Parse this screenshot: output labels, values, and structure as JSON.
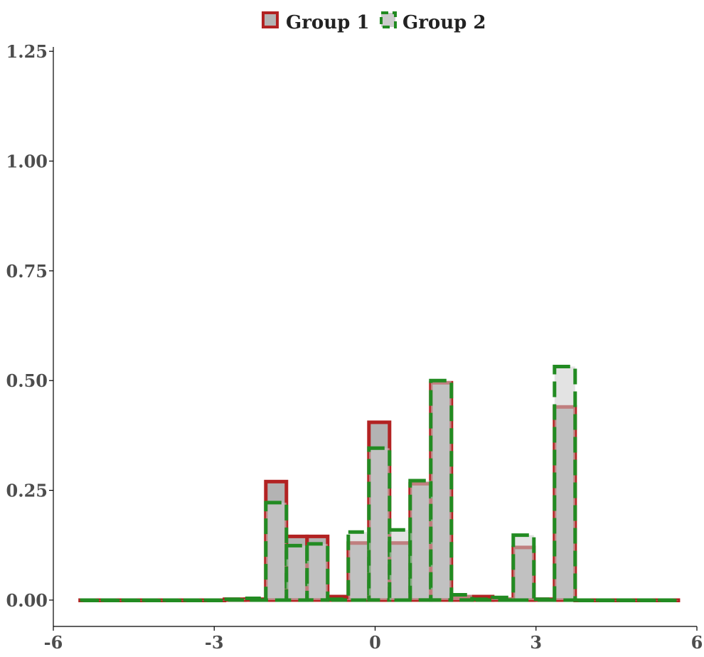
{
  "chart_data": {
    "type": "bar",
    "title": "",
    "xlabel": "",
    "ylabel": "",
    "xlim": [
      -6,
      6
    ],
    "ylim": [
      -0.06,
      1.26
    ],
    "grid": false,
    "legend_position": "top",
    "x_ticks": [
      {
        "value": -6,
        "label": "-6"
      },
      {
        "value": -3,
        "label": "-3"
      },
      {
        "value": 0,
        "label": "0"
      },
      {
        "value": 3,
        "label": "3"
      },
      {
        "value": 6,
        "label": "6"
      }
    ],
    "y_ticks": [
      {
        "value": 0,
        "label": "0.00"
      },
      {
        "value": 0.25,
        "label": "0.25"
      },
      {
        "value": 0.5,
        "label": "0.50"
      },
      {
        "value": 0.75,
        "label": "0.75"
      },
      {
        "value": 1.0,
        "label": "1.00"
      },
      {
        "value": 1.25,
        "label": "1.25"
      }
    ],
    "bin_start": -5.5,
    "bin_width": 0.3846,
    "series": [
      {
        "name": "Group 1",
        "color": "#b22222",
        "fill": "#b3b3b3",
        "line_style": "solid",
        "values": [
          0,
          0,
          0,
          0,
          0,
          0,
          0,
          0.002,
          0.002,
          0.27,
          0.145,
          0.145,
          0.008,
          0.13,
          0.405,
          0.13,
          0.265,
          0.495,
          0.008,
          0.008,
          0.002,
          0.12,
          0.002,
          0.44,
          0,
          0,
          0,
          0,
          0
        ]
      },
      {
        "name": "Group 2",
        "color": "#228b22",
        "fill": "#cccccc",
        "line_style": "dashed",
        "values": [
          0,
          0,
          0,
          0,
          0,
          0,
          0,
          0.002,
          0.004,
          0.222,
          0.124,
          0.128,
          0.002,
          0.155,
          0.346,
          0.16,
          0.272,
          0.5,
          0.012,
          0.002,
          0.006,
          0.148,
          0.002,
          0.532,
          0,
          0,
          0,
          0,
          0
        ]
      }
    ]
  }
}
